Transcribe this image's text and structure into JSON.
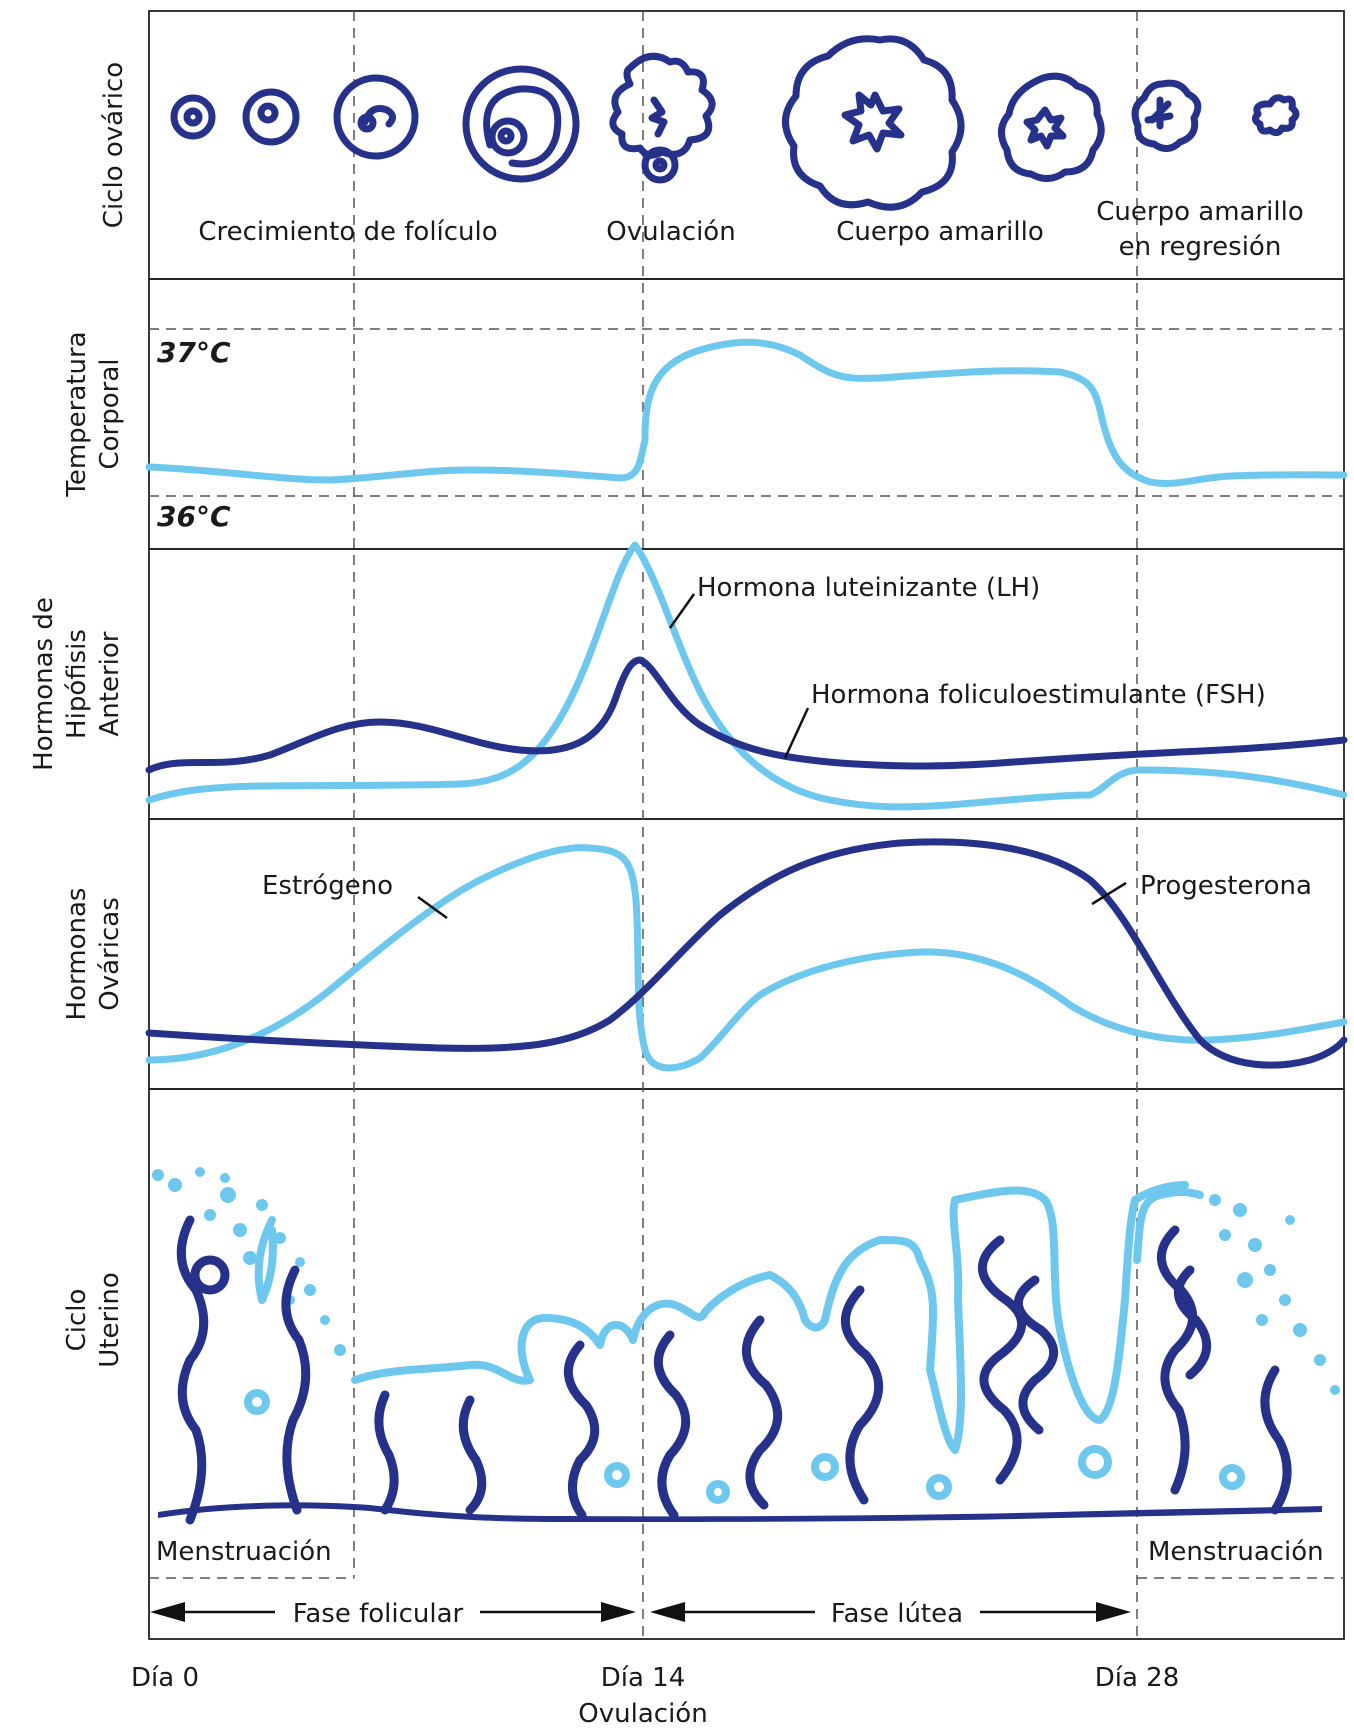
{
  "rows": {
    "ovarian": "Ciclo ovárico",
    "temperature": [
      "Temperatura",
      "Corporal"
    ],
    "pituitary": [
      "Hormonas de",
      "Hipófisis",
      "Anterior"
    ],
    "ovarian_hormones": [
      "Hormonas",
      "Ováricas"
    ],
    "uterine": [
      "Ciclo",
      "Uterino"
    ]
  },
  "ovarian_labels": {
    "growth": "Crecimiento de folículo",
    "ovulation": "Ovulación",
    "corpus_luteum": "Cuerpo amarillo",
    "regression": [
      "Cuerpo amarillo",
      "en regresión"
    ]
  },
  "temperature_labels": {
    "high": "37°C",
    "low": "36°C"
  },
  "hormone_labels": {
    "lh": "Hormona luteinizante (LH)",
    "fsh": "Hormona foliculoestimulante (FSH)",
    "estrogen": "Estrógeno",
    "progesterone": "Progesterona"
  },
  "uterine_labels": {
    "menstruation_start": "Menstruación",
    "menstruation_end": "Menstruación"
  },
  "phases": {
    "follicular": "Fase folicular",
    "luteal": "Fase lútea"
  },
  "days": {
    "day0": "Día 0",
    "day14": "Día 14",
    "day28": "Día 28",
    "ovulation": "Ovulación"
  },
  "colors": {
    "light_blue": "#6ec8ee",
    "dark_blue": "#26318a"
  }
}
